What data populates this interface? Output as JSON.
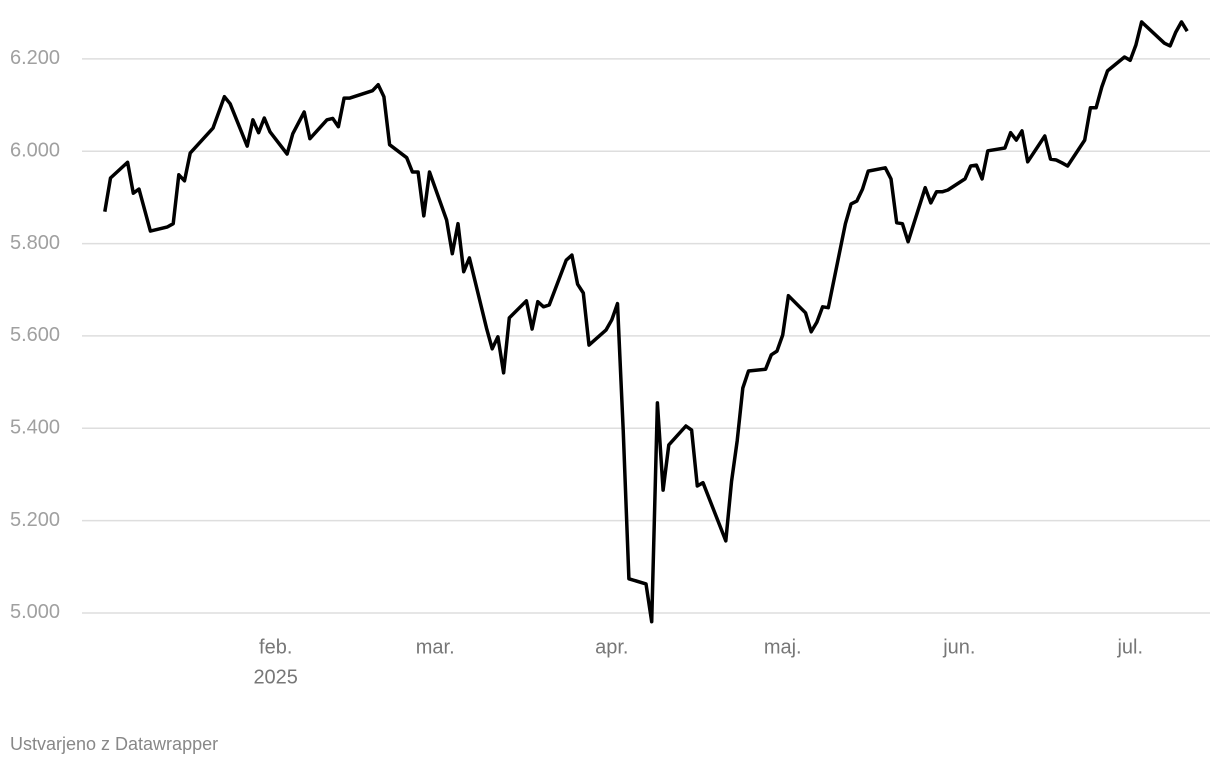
{
  "chart_data": {
    "type": "line",
    "color": "#000000",
    "grid": true,
    "x": [
      2,
      3,
      6,
      7,
      8,
      10,
      13,
      14,
      15,
      16,
      17,
      21,
      23,
      24,
      27,
      28,
      29,
      30,
      31,
      34,
      35,
      37,
      38,
      41,
      42,
      43,
      44,
      45,
      49,
      50,
      51,
      52,
      55,
      56,
      57,
      58,
      59,
      62,
      63,
      64,
      65,
      66,
      69,
      70,
      71,
      72,
      73,
      76,
      77,
      78,
      79,
      80,
      83,
      84,
      85,
      86,
      87,
      90,
      91,
      92,
      93,
      94,
      97,
      98,
      99,
      100,
      101,
      104,
      105,
      106,
      107,
      111,
      112,
      113,
      114,
      115,
      118,
      119,
      120,
      121,
      122,
      125,
      126,
      127,
      128,
      129,
      132,
      133,
      134,
      135,
      136,
      139,
      140,
      141,
      142,
      143,
      146,
      147,
      148,
      149,
      150,
      153,
      154,
      155,
      156,
      157,
      160,
      161,
      162,
      163,
      164,
      167,
      168,
      169,
      170,
      171,
      174,
      175,
      176,
      177,
      178,
      181,
      182,
      183,
      184,
      188,
      189,
      190,
      191,
      192
    ],
    "values": [
      5869,
      5942,
      5976,
      5909,
      5918,
      5827,
      5836,
      5843,
      5949,
      5936,
      5996,
      6050,
      6118,
      6103,
      6011,
      6068,
      6040,
      6072,
      6042,
      5994,
      6038,
      6085,
      6027,
      6068,
      6071,
      6053,
      6115,
      6115,
      6131,
      6144,
      6118,
      6014,
      5986,
      5955,
      5955,
      5860,
      5955,
      5851,
      5778,
      5843,
      5739,
      5769,
      5617,
      5572,
      5598,
      5520,
      5639,
      5676,
      5615,
      5674,
      5663,
      5667,
      5764,
      5775,
      5712,
      5693,
      5580,
      5613,
      5635,
      5670,
      5396,
      5074,
      5063,
      4981,
      5455,
      5266,
      5364,
      5405,
      5396,
      5275,
      5282,
      5156,
      5284,
      5373,
      5487,
      5524,
      5528,
      5559,
      5567,
      5602,
      5687,
      5650,
      5609,
      5630,
      5663,
      5661,
      5843,
      5886,
      5892,
      5918,
      5957,
      5964,
      5940,
      5845,
      5843,
      5804,
      5921,
      5888,
      5912,
      5912,
      5916,
      5940,
      5968,
      5970,
      5940,
      6001,
      6007,
      6040,
      6024,
      6044,
      5977,
      6033,
      5983,
      5981,
      5975,
      5968,
      6024,
      6094,
      6094,
      6139,
      6174,
      6204,
      6197,
      6230,
      6280,
      6234,
      6228,
      6258,
      6280,
      6260
    ],
    "xlim": [
      -2,
      196
    ],
    "xticks": [
      {
        "value": 32,
        "label": "feb."
      },
      {
        "value": 60,
        "label": "mar."
      },
      {
        "value": 91,
        "label": "apr."
      },
      {
        "value": 121,
        "label": "maj."
      },
      {
        "value": 152,
        "label": "jun."
      },
      {
        "value": 182,
        "label": "jul."
      }
    ],
    "x_year_label": "2025",
    "ylim": [
      4975,
      6295
    ],
    "yticks": [
      {
        "value": 5000,
        "label": "5.000"
      },
      {
        "value": 5200,
        "label": "5.200"
      },
      {
        "value": 5400,
        "label": "5.400"
      },
      {
        "value": 5600,
        "label": "5.600"
      },
      {
        "value": 5800,
        "label": "5.800"
      },
      {
        "value": 6000,
        "label": "6.000"
      },
      {
        "value": 6200,
        "label": "6.200"
      }
    ],
    "footer": "Ustvarjeno z Datawrapper"
  }
}
